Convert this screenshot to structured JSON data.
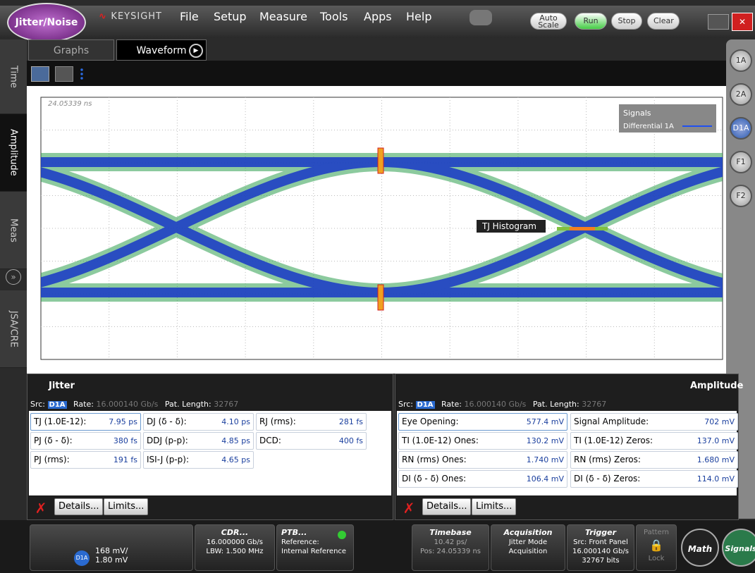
{
  "app_badge": "Jitter/Noise",
  "brand": "KEYSIGHT",
  "menu": [
    "File",
    "Setup",
    "Measure",
    "Tools",
    "Apps",
    "Help"
  ],
  "toolbar_buttons": [
    "Auto Scale",
    "Run",
    "Stop",
    "Clear"
  ],
  "tabs": [
    "Graphs",
    "Waveform"
  ],
  "side_tabs": [
    "Time",
    "Amplitude",
    "Meas",
    "JSA/CRE"
  ],
  "channels": [
    "1A",
    "2A",
    "D1A",
    "F1",
    "F2"
  ],
  "waveform": {
    "timestamp": "24.05339 ns",
    "legend_title": "Signals",
    "legend_entry": "Differential 1A",
    "annotation": "TJ Histogram"
  },
  "jitter_panel": {
    "title": "Jitter",
    "src_label": "Src:",
    "src": "D1A",
    "rate_label": "Rate:",
    "rate": "16.000140 Gb/s",
    "pat_label": "Pat. Length:",
    "pat": "32767",
    "rows": [
      [
        [
          "TJ (1.0E-12):",
          "7.95 ps"
        ],
        [
          "DJ (δ - δ):",
          "4.10 ps"
        ],
        [
          "RJ (rms):",
          "281 fs"
        ]
      ],
      [
        [
          "PJ (δ - δ):",
          "380 fs"
        ],
        [
          "DDJ (p-p):",
          "4.85 ps"
        ],
        [
          "DCD:",
          "400 fs"
        ]
      ],
      [
        [
          "PJ (rms):",
          "191 fs"
        ],
        [
          "ISI-J (p-p):",
          "4.65 ps"
        ]
      ]
    ],
    "buttons": [
      "Details...",
      "Limits..."
    ]
  },
  "amplitude_panel": {
    "title": "Amplitude",
    "src_label": "Src:",
    "src": "D1A",
    "rate_label": "Rate:",
    "rate": "16.000140 Gb/s",
    "pat_label": "Pat. Length:",
    "pat": "32767",
    "rows": [
      [
        [
          "Eye Opening:",
          "577.4 mV"
        ],
        [
          "Signal Amplitude:",
          "702 mV"
        ]
      ],
      [
        [
          "TI (1.0E-12) Ones:",
          "130.2 mV"
        ],
        [
          "TI (1.0E-12) Zeros:",
          "137.0 mV"
        ]
      ],
      [
        [
          "RN (rms) Ones:",
          "1.740 mV"
        ],
        [
          "RN (rms) Zeros:",
          "1.680 mV"
        ]
      ],
      [
        [
          "DI (δ - δ) Ones:",
          "106.4 mV"
        ],
        [
          "DI (δ - δ) Zeros:",
          "114.0 mV"
        ]
      ]
    ],
    "buttons": [
      "Details...",
      "Limits..."
    ]
  },
  "status_bar": {
    "channel": {
      "name": "D1A",
      "scale": "168 mV/",
      "offset": "1.80 mV"
    },
    "cdr": {
      "title": "CDR...",
      "rate": "16.000000 Gb/s",
      "lbw": "LBW: 1.500 MHz"
    },
    "ptb": {
      "title": "PTB...",
      "label": "Reference:",
      "value": "Internal Reference"
    },
    "timebase": {
      "title": "Timebase",
      "scale": "10.42 ps/",
      "pos": "Pos: 24.05339 ns"
    },
    "acquisition": {
      "title": "Acquisition",
      "line1": "Jitter Mode",
      "line2": "Acquisition"
    },
    "trigger": {
      "title": "Trigger",
      "src": "Src: Front Panel",
      "rate": "16.000140 Gb/s",
      "bits": "32767 bits"
    },
    "pattern": {
      "title": "Pattern",
      "state": "Lock"
    },
    "math": "Math",
    "signals": "Signals"
  }
}
